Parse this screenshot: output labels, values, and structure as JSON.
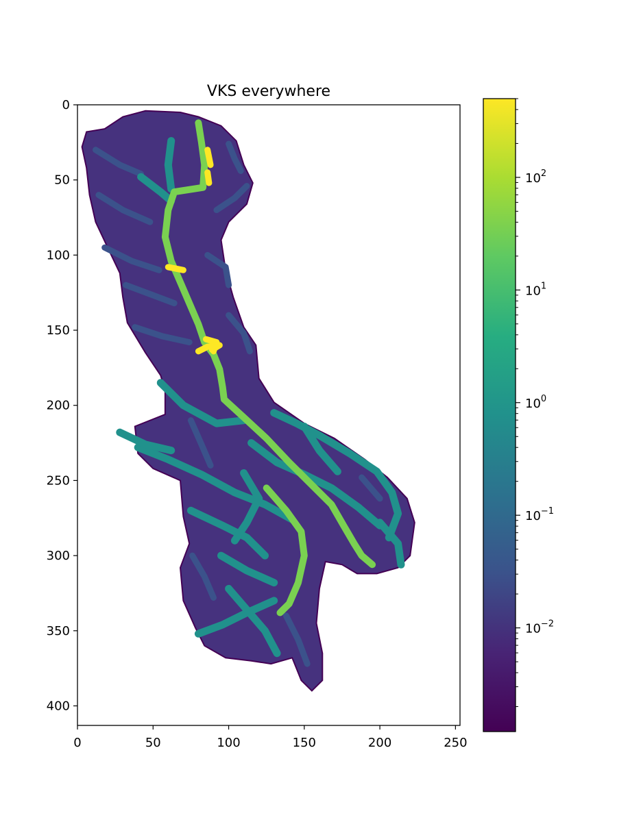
{
  "chart_data": {
    "type": "heatmap",
    "title": "VKS everywhere",
    "xlabel": "",
    "ylabel": "",
    "x_ticks": [
      0,
      50,
      100,
      150,
      200,
      250
    ],
    "y_ticks": [
      0,
      50,
      100,
      150,
      200,
      250,
      300,
      350,
      400
    ],
    "xlim": [
      0,
      253
    ],
    "ylim": [
      413,
      0
    ],
    "grid": false,
    "colormap": "viridis",
    "colorbar": {
      "scale": "log",
      "range": [
        0.0012,
        500
      ],
      "tick_labels": [
        {
          "value": 0.01,
          "base": "10",
          "exp": "−2"
        },
        {
          "value": 0.1,
          "base": "10",
          "exp": "−1"
        },
        {
          "value": 1,
          "base": "10",
          "exp": "0"
        },
        {
          "value": 10,
          "base": "10",
          "exp": "1"
        },
        {
          "value": 100,
          "base": "10",
          "exp": "2"
        }
      ]
    },
    "colors": {
      "background_value": "#440154",
      "land_base": "#46327e",
      "tributary": "#21918c",
      "minor_stream": "#3b528b",
      "main_channel": "#7ad151",
      "hotspot": "#fde725"
    },
    "region_outline": [
      [
        68,
        5
      ],
      [
        80,
        8
      ],
      [
        95,
        14
      ],
      [
        105,
        24
      ],
      [
        110,
        40
      ],
      [
        116,
        52
      ],
      [
        112,
        66
      ],
      [
        100,
        78
      ],
      [
        95,
        90
      ],
      [
        98,
        110
      ],
      [
        103,
        128
      ],
      [
        110,
        148
      ],
      [
        118,
        160
      ],
      [
        120,
        182
      ],
      [
        130,
        198
      ],
      [
        150,
        212
      ],
      [
        170,
        222
      ],
      [
        190,
        236
      ],
      [
        205,
        248
      ],
      [
        218,
        262
      ],
      [
        223,
        278
      ],
      [
        220,
        300
      ],
      [
        212,
        308
      ],
      [
        198,
        312
      ],
      [
        185,
        312
      ],
      [
        175,
        306
      ],
      [
        164,
        304
      ],
      [
        160,
        322
      ],
      [
        158,
        345
      ],
      [
        162,
        365
      ],
      [
        162,
        383
      ],
      [
        155,
        390
      ],
      [
        148,
        383
      ],
      [
        142,
        368
      ],
      [
        128,
        372
      ],
      [
        115,
        370
      ],
      [
        98,
        368
      ],
      [
        84,
        360
      ],
      [
        78,
        348
      ],
      [
        70,
        330
      ],
      [
        68,
        308
      ],
      [
        74,
        292
      ],
      [
        70,
        274
      ],
      [
        68,
        250
      ],
      [
        50,
        242
      ],
      [
        40,
        232
      ],
      [
        38,
        214
      ],
      [
        58,
        206
      ],
      [
        58,
        190
      ],
      [
        55,
        180
      ],
      [
        45,
        165
      ],
      [
        33,
        145
      ],
      [
        30,
        128
      ],
      [
        28,
        112
      ],
      [
        20,
        95
      ],
      [
        12,
        78
      ],
      [
        8,
        60
      ],
      [
        6,
        42
      ],
      [
        3,
        28
      ],
      [
        6,
        18
      ],
      [
        18,
        16
      ],
      [
        30,
        8
      ],
      [
        45,
        4
      ]
    ],
    "main_channel_path": [
      [
        80,
        12
      ],
      [
        82,
        25
      ],
      [
        84,
        40
      ],
      [
        83,
        55
      ],
      [
        64,
        58
      ],
      [
        60,
        70
      ],
      [
        58,
        88
      ],
      [
        62,
        104
      ],
      [
        68,
        118
      ],
      [
        74,
        132
      ],
      [
        80,
        146
      ],
      [
        84,
        158
      ],
      [
        90,
        166
      ],
      [
        94,
        176
      ],
      [
        96,
        188
      ],
      [
        97,
        196
      ],
      [
        110,
        208
      ],
      [
        125,
        222
      ],
      [
        140,
        238
      ],
      [
        156,
        254
      ],
      [
        168,
        266
      ],
      [
        176,
        280
      ],
      [
        183,
        292
      ],
      [
        188,
        300
      ],
      [
        195,
        306
      ]
    ],
    "secondary_channel_path": [
      [
        125,
        255
      ],
      [
        138,
        270
      ],
      [
        148,
        284
      ],
      [
        150,
        300
      ],
      [
        146,
        318
      ],
      [
        140,
        332
      ],
      [
        134,
        338
      ]
    ],
    "tributaries": [
      [
        [
          55,
          185
        ],
        [
          70,
          200
        ],
        [
          92,
          212
        ],
        [
          110,
          210
        ]
      ],
      [
        [
          40,
          228
        ],
        [
          60,
          236
        ],
        [
          82,
          246
        ],
        [
          104,
          258
        ],
        [
          124,
          266
        ],
        [
          142,
          276
        ]
      ],
      [
        [
          28,
          218
        ],
        [
          45,
          226
        ],
        [
          62,
          230
        ]
      ],
      [
        [
          130,
          205
        ],
        [
          145,
          212
        ],
        [
          160,
          220
        ],
        [
          180,
          232
        ],
        [
          198,
          244
        ],
        [
          208,
          258
        ],
        [
          212,
          272
        ],
        [
          206,
          288
        ]
      ],
      [
        [
          115,
          225
        ],
        [
          132,
          238
        ],
        [
          150,
          246
        ],
        [
          168,
          255
        ],
        [
          186,
          268
        ],
        [
          200,
          280
        ]
      ],
      [
        [
          75,
          270
        ],
        [
          96,
          280
        ],
        [
          112,
          288
        ],
        [
          124,
          300
        ]
      ],
      [
        [
          95,
          300
        ],
        [
          112,
          310
        ],
        [
          130,
          318
        ]
      ],
      [
        [
          80,
          352
        ],
        [
          96,
          346
        ],
        [
          112,
          338
        ],
        [
          130,
          330
        ]
      ],
      [
        [
          100,
          322
        ],
        [
          112,
          336
        ],
        [
          124,
          350
        ],
        [
          132,
          365
        ]
      ],
      [
        [
          110,
          245
        ],
        [
          120,
          262
        ],
        [
          112,
          278
        ],
        [
          104,
          290
        ]
      ],
      [
        [
          150,
          214
        ],
        [
          160,
          230
        ],
        [
          172,
          244
        ]
      ],
      [
        [
          200,
          278
        ],
        [
          212,
          292
        ],
        [
          214,
          306
        ]
      ],
      [
        [
          62,
          24
        ],
        [
          60,
          40
        ],
        [
          62,
          56
        ]
      ],
      [
        [
          42,
          48
        ],
        [
          55,
          58
        ],
        [
          62,
          64
        ]
      ]
    ],
    "minor_streams": [
      [
        [
          12,
          30
        ],
        [
          28,
          40
        ],
        [
          42,
          46
        ]
      ],
      [
        [
          14,
          60
        ],
        [
          30,
          70
        ],
        [
          48,
          78
        ]
      ],
      [
        [
          18,
          95
        ],
        [
          36,
          104
        ],
        [
          54,
          110
        ]
      ],
      [
        [
          32,
          120
        ],
        [
          48,
          126
        ],
        [
          64,
          132
        ]
      ],
      [
        [
          38,
          148
        ],
        [
          56,
          154
        ],
        [
          74,
          158
        ]
      ],
      [
        [
          92,
          70
        ],
        [
          104,
          62
        ],
        [
          112,
          54
        ]
      ],
      [
        [
          86,
          100
        ],
        [
          98,
          108
        ],
        [
          100,
          120
        ]
      ],
      [
        [
          100,
          140
        ],
        [
          110,
          152
        ],
        [
          114,
          164
        ]
      ],
      [
        [
          100,
          26
        ],
        [
          104,
          36
        ],
        [
          108,
          44
        ]
      ],
      [
        [
          75,
          210
        ],
        [
          82,
          226
        ],
        [
          88,
          240
        ]
      ],
      [
        [
          138,
          340
        ],
        [
          146,
          356
        ],
        [
          152,
          372
        ]
      ],
      [
        [
          76,
          300
        ],
        [
          84,
          314
        ],
        [
          90,
          328
        ]
      ],
      [
        [
          188,
          248
        ],
        [
          200,
          262
        ]
      ]
    ],
    "hotspots": [
      [
        [
          85,
          156
        ],
        [
          92,
          158
        ],
        [
          90,
          164
        ]
      ],
      [
        [
          80,
          164
        ],
        [
          86,
          161
        ],
        [
          94,
          160
        ],
        [
          89,
          163
        ]
      ],
      [
        [
          60,
          108
        ],
        [
          70,
          110
        ]
      ],
      [
        [
          86,
          30
        ],
        [
          88,
          40
        ]
      ],
      [
        [
          86,
          45
        ],
        [
          87,
          52
        ]
      ]
    ]
  }
}
